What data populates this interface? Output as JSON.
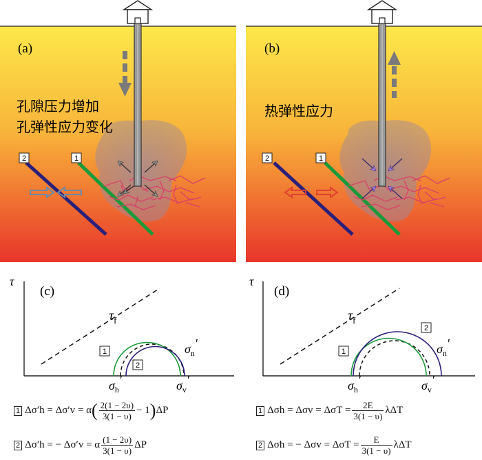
{
  "panels": {
    "a": {
      "label": "(a)",
      "caption_line1": "孔隙压力增加",
      "caption_line2": "孔弹性应力变化",
      "fault1_tag": "1",
      "fault2_tag": "2"
    },
    "b": {
      "label": "(b)",
      "caption": "热弹性应力",
      "fault1_tag": "1",
      "fault2_tag": "2"
    },
    "c": {
      "label": "(c)",
      "tau": "τ",
      "tau_f": "τ",
      "tau_f_sub": "f",
      "circle1_tag": "1",
      "circle2_tag": "2",
      "sigma_h": "σ",
      "sigma_h_sub": "h",
      "sigma_v": "σ",
      "sigma_v_sub": "v",
      "sigma_n": "σ",
      "sigma_n_sub": "n",
      "prime": "′"
    },
    "d": {
      "label": "(d)",
      "tau": "τ",
      "tau_f": "τ",
      "tau_f_sub": "f",
      "circle1_tag": "1",
      "circle2_tag": "2",
      "sigma_h": "σ",
      "sigma_h_sub": "h",
      "sigma_v": "σ",
      "sigma_v_sub": "v",
      "sigma_n": "σ",
      "sigma_n_sub": "n",
      "prime": "′"
    }
  },
  "formulas": {
    "c1": {
      "tag": "1",
      "lhs": "Δσ′h = Δσ′v = α",
      "num": "2(1 − 2υ)",
      "den": "3(1 − υ)",
      "tail": "− 1",
      "rhs": "ΔP"
    },
    "c2": {
      "tag": "2",
      "lhs": "Δσ′h = − Δσ′v = α",
      "num": "(1 − 2υ)",
      "den": "3(1 − υ)",
      "rhs": "ΔP"
    },
    "d1": {
      "tag": "1",
      "lhs": "Δσh = Δσv = ΔσT =",
      "num": "2E",
      "den": "3(1 − υ)",
      "rhs": "λΔT"
    },
    "d2": {
      "tag": "2",
      "lhs": "Δσh = − Δσv = ΔσT =",
      "num": "E",
      "den": "3(1 − υ)",
      "rhs": "λΔT"
    }
  },
  "colors": {
    "fault1": "#1a9a3a",
    "fault2": "#2a1f7a",
    "ground_top": "#fde84a",
    "ground_bottom": "#e8352a",
    "fracture": "#d8406a",
    "arrow_grey": "#8a8a8a",
    "arrow_blue": "#6a8aa8",
    "arrow_red": "#e04030",
    "arrow_purple": "#8a6ad8"
  }
}
